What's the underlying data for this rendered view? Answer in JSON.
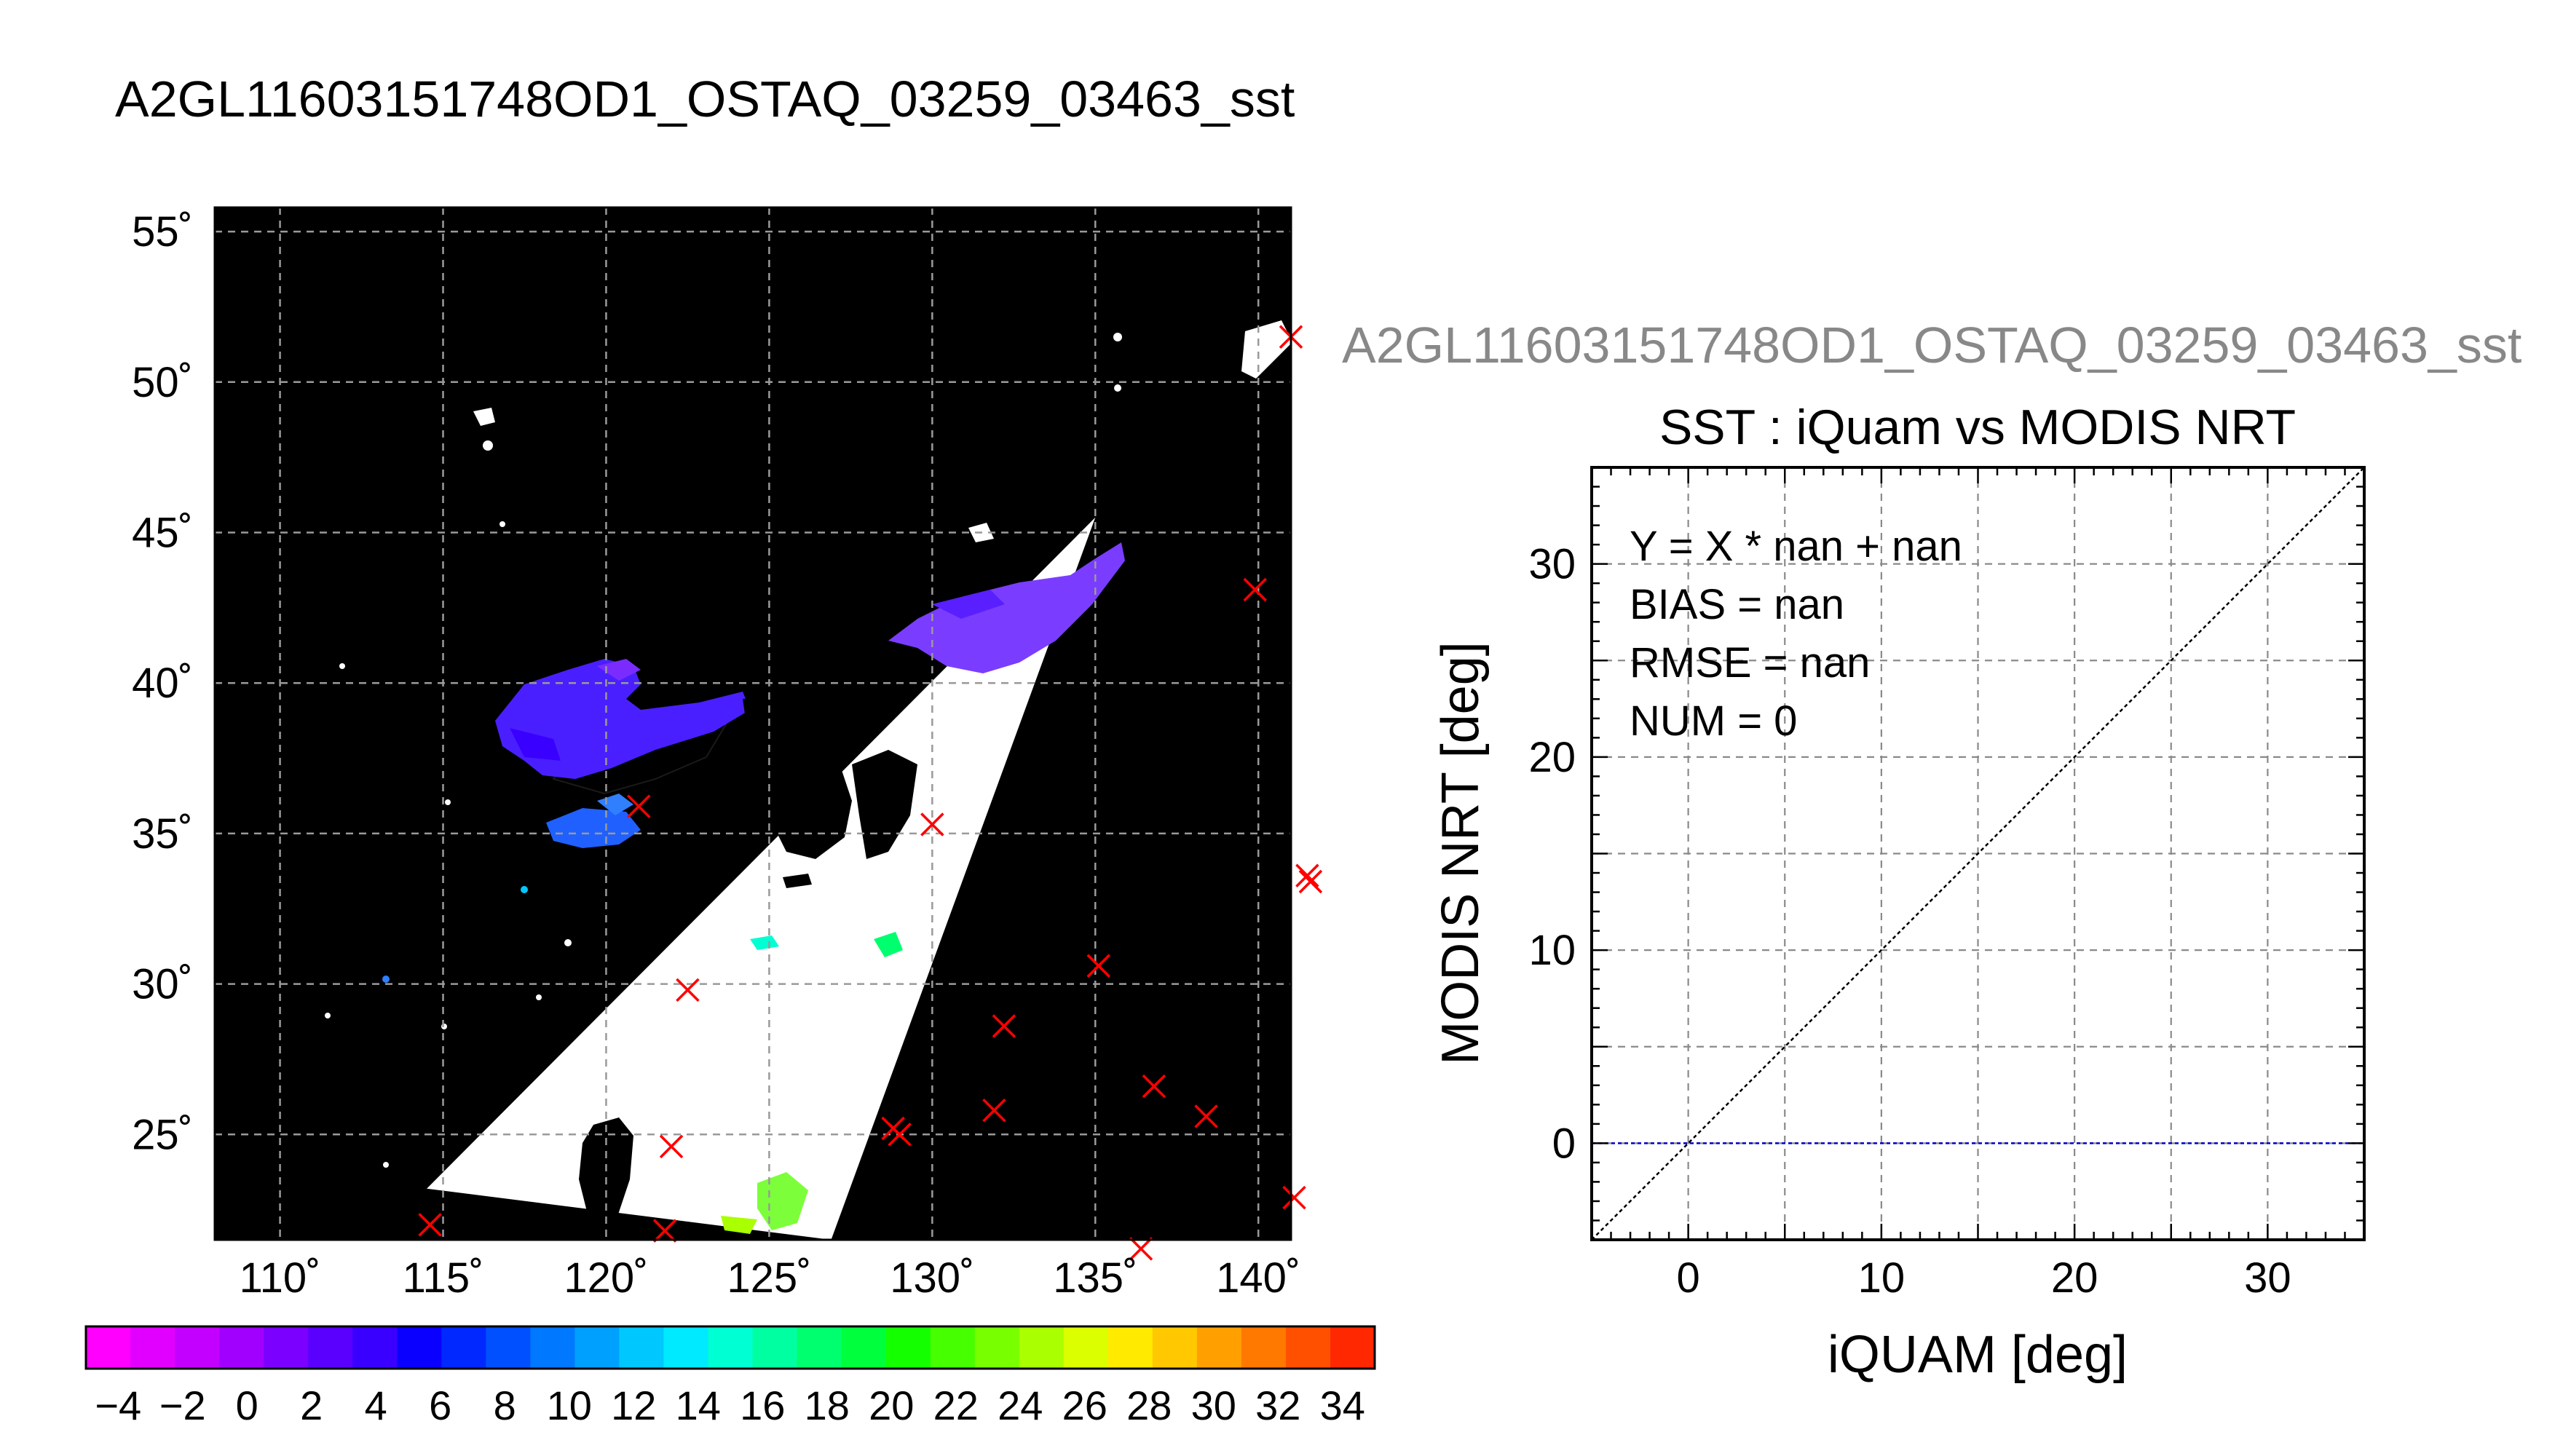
{
  "main_title": "A2GL11603151748OD1_OSTAQ_03259_03463_sst",
  "chart_data": [
    {
      "type": "heatmap",
      "title": "",
      "xlim": [
        108.0,
        141.0
      ],
      "ylim": [
        21.5,
        55.8
      ],
      "x_ticks": [
        110,
        115,
        120,
        125,
        130,
        135,
        140
      ],
      "x_tick_labels": [
        "110˚",
        "115˚",
        "120˚",
        "125˚",
        "130˚",
        "135˚",
        "140˚"
      ],
      "y_ticks": [
        25,
        30,
        35,
        40,
        45,
        50,
        55
      ],
      "y_tick_labels": [
        "25˚",
        "30˚",
        "35˚",
        "40˚",
        "45˚",
        "50˚",
        "55˚"
      ],
      "grid": true,
      "swath_corners": [
        [
          135.0,
          45.5
        ],
        [
          126.9,
          21.5
        ],
        [
          114.5,
          23.2
        ]
      ],
      "colorbar": {
        "min": -5,
        "max": 35,
        "tick_values": [
          -4,
          -2,
          0,
          2,
          4,
          6,
          8,
          10,
          12,
          14,
          16,
          18,
          20,
          22,
          24,
          26,
          28,
          30,
          32,
          34
        ],
        "tick_labels": [
          "−4",
          "−2",
          "0",
          "2",
          "4",
          "6",
          "8",
          "10",
          "12",
          "14",
          "16",
          "18",
          "20",
          "22",
          "24",
          "26",
          "28",
          "30",
          "32",
          "34"
        ],
        "colors": [
          "#ff00ff",
          "#e100ff",
          "#c300ff",
          "#a100ff",
          "#7b00ff",
          "#5a00ff",
          "#3a00ff",
          "#0a00ff",
          "#0028ff",
          "#0050ff",
          "#0078ff",
          "#00a0ff",
          "#00c8ff",
          "#00eaff",
          "#00ffd2",
          "#00ffa0",
          "#00ff6e",
          "#00ff3c",
          "#14ff00",
          "#46ff00",
          "#78ff00",
          "#aaff00",
          "#dcff00",
          "#ffea00",
          "#ffc800",
          "#ffa000",
          "#ff7800",
          "#ff5000",
          "#ff2800"
        ]
      },
      "buoy_markers": [
        {
          "lon": 141.0,
          "lat": 51.5
        },
        {
          "lon": 139.9,
          "lat": 43.1
        },
        {
          "lon": 121.0,
          "lat": 35.9
        },
        {
          "lon": 130.0,
          "lat": 35.3
        },
        {
          "lon": 141.5,
          "lat": 33.6
        },
        {
          "lon": 141.6,
          "lat": 33.4
        },
        {
          "lon": 122.5,
          "lat": 29.8
        },
        {
          "lon": 135.1,
          "lat": 30.6
        },
        {
          "lon": 132.2,
          "lat": 28.6
        },
        {
          "lon": 136.8,
          "lat": 26.6
        },
        {
          "lon": 131.9,
          "lat": 25.8
        },
        {
          "lon": 138.4,
          "lat": 25.6
        },
        {
          "lon": 128.8,
          "lat": 25.2
        },
        {
          "lon": 129.0,
          "lat": 25.0
        },
        {
          "lon": 122.0,
          "lat": 24.6
        },
        {
          "lon": 141.1,
          "lat": 22.9
        },
        {
          "lon": 114.6,
          "lat": 22.0
        },
        {
          "lon": 121.8,
          "lat": 21.8
        },
        {
          "lon": 136.4,
          "lat": 21.2
        }
      ]
    },
    {
      "type": "scatter",
      "supertitle": "A2GL11603151748OD1_OSTAQ_03259_03463_sst",
      "title": "SST : iQuam vs MODIS NRT",
      "xlabel": "iQUAM [deg]",
      "ylabel": "MODIS NRT [deg]",
      "xlim": [
        -5,
        35
      ],
      "ylim": [
        -5,
        35
      ],
      "x_ticks": [
        0,
        10,
        20,
        30
      ],
      "y_ticks": [
        0,
        10,
        20,
        30
      ],
      "grid": true,
      "stats": [
        "Y = X * nan + nan",
        "BIAS = nan",
        "RMSE = nan",
        "NUM = 0"
      ],
      "points": [],
      "reference_lines": [
        {
          "kind": "one-to-one",
          "color": "#000000"
        },
        {
          "kind": "horizontal",
          "y": 0,
          "color": "#0000cc"
        }
      ]
    }
  ]
}
